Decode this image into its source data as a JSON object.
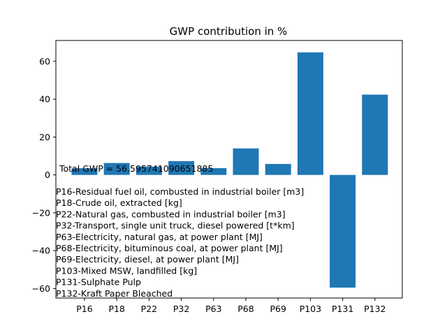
{
  "chart_data": {
    "type": "bar",
    "title": "GWP contribution in %",
    "xlabel": "",
    "ylabel": "",
    "categories": [
      "P16",
      "P18",
      "P22",
      "P32",
      "P63",
      "P68",
      "P69",
      "P103",
      "P131",
      "P132"
    ],
    "values": [
      3.5,
      6.3,
      4.4,
      7.3,
      3.6,
      14.0,
      5.8,
      64.7,
      -59.5,
      42.4
    ],
    "ylim": [
      -65,
      71
    ],
    "yticks": [
      -60,
      -40,
      -20,
      0,
      20,
      40,
      60
    ],
    "grid": false,
    "bar_color": "#1f77b4",
    "annotations": {
      "total": "Total GWP = 56.595741090651885",
      "legend_lines": [
        "P16-Residual fuel oil, combusted in industrial boiler [m3]",
        "P18-Crude oil, extracted [kg]",
        "P22-Natural gas, combusted in industrial boiler [m3]",
        "P32-Transport, single unit truck, diesel powered [t*km]",
        "P63-Electricity, natural gas, at power plant [MJ]",
        "P68-Electricity, bituminous coal, at power plant [MJ]",
        "P69-Electricity, diesel, at power plant [MJ]",
        "P103-Mixed MSW, landfilled [kg]",
        "P131-Sulphate Pulp",
        "P132-Kraft Paper Bleached"
      ]
    }
  }
}
